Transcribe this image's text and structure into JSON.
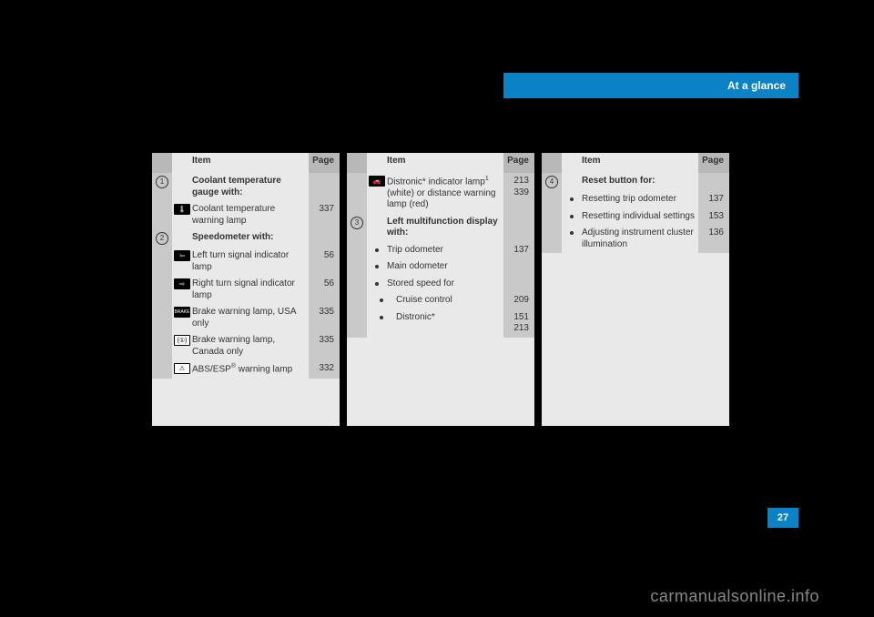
{
  "header": {
    "title": "At a glance"
  },
  "page_number": "27",
  "watermark": "carmanualsonline.info",
  "col_headers": {
    "item": "Item",
    "page": "Page"
  },
  "col1": {
    "rows": [
      {
        "num": "1",
        "icon": "",
        "text": "Coolant temperature gauge with:",
        "page": "",
        "bold": true
      },
      {
        "num": "",
        "icon": "temp",
        "text": "Coolant temperature warning lamp",
        "page": "337"
      },
      {
        "num": "2",
        "icon": "",
        "text": "Speedometer with:",
        "page": "",
        "bold": true
      },
      {
        "num": "",
        "icon": "left",
        "text": "Left turn signal indicator lamp",
        "page": "56"
      },
      {
        "num": "",
        "icon": "right",
        "text": "Right turn signal indicator lamp",
        "page": "56"
      },
      {
        "num": "",
        "icon": "brake",
        "text": "Brake warning lamp, USA only",
        "page": "335"
      },
      {
        "num": "",
        "icon": "brakeca",
        "text": "Brake warning lamp, Canada only",
        "page": "335"
      },
      {
        "num": "",
        "icon": "abs",
        "text": "ABS/ESP® warning lamp",
        "page": "332"
      }
    ]
  },
  "col2": {
    "rows": [
      {
        "num": "",
        "icon": "car",
        "text": "Distronic* indicator lamp¹ (white) or distance warning lamp (red)",
        "page": "213, 339"
      },
      {
        "num": "3",
        "icon": "",
        "text": "Left multifunction display with:",
        "page": "",
        "bold": true
      },
      {
        "num": "",
        "icon": "bullet",
        "text": "Trip odometer",
        "page": "137"
      },
      {
        "num": "",
        "icon": "bullet",
        "text": "Main odometer",
        "page": ""
      },
      {
        "num": "",
        "icon": "bullet",
        "text": "Stored speed for",
        "page": ""
      },
      {
        "num": "",
        "icon": "bullet2",
        "text": "Cruise control",
        "page": "209"
      },
      {
        "num": "",
        "icon": "bullet2",
        "text": "Distronic*",
        "page": "151, 213"
      }
    ]
  },
  "col3": {
    "rows": [
      {
        "num": "4",
        "icon": "",
        "text": "Reset button for:",
        "page": "",
        "bold": true
      },
      {
        "num": "",
        "icon": "bullet",
        "text": "Resetting trip odometer",
        "page": "137"
      },
      {
        "num": "",
        "icon": "bullet",
        "text": "Resetting individual settings",
        "page": "153"
      },
      {
        "num": "",
        "icon": "bullet",
        "text": "Adjusting instrument cluster illumination",
        "page": "136"
      }
    ]
  },
  "icons": {
    "temp": "🌡",
    "left": "⇦",
    "right": "⇨",
    "brake": "BRAKE",
    "brakeca": "(①)",
    "abs": "⚠",
    "car": "🚗"
  },
  "colors": {
    "accent": "#0b82c6",
    "panel_bg": "#e9e9e9",
    "panel_dark": "#c9c9c9",
    "text": "#333333",
    "page_bg": "#000000"
  }
}
